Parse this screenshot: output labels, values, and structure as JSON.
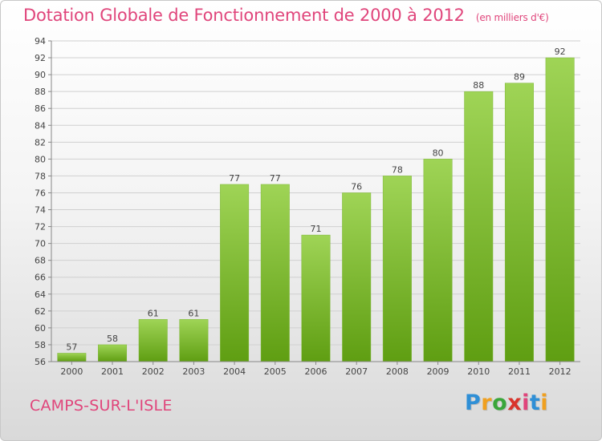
{
  "header": {
    "title": "Dotation Globale de Fonctionnement de 2000 à 2012",
    "unit": "(en milliers d'€)"
  },
  "footer": {
    "commune": "CAMPS-SUR-L'ISLE",
    "logo_text": "Proxiti",
    "logo_letters": [
      "P",
      "r",
      "o",
      "x",
      "i",
      "t",
      "i"
    ],
    "logo_colors": [
      "#2f8fd6",
      "#f0a020",
      "#3aa63a",
      "#d9342b",
      "#e0457b",
      "#2f8fd6",
      "#f0a020"
    ]
  },
  "chart_data": {
    "type": "bar",
    "title": "Dotation Globale de Fonctionnement de 2000 à 2012",
    "subtitle": "(en milliers d'€)",
    "categories": [
      "2000",
      "2001",
      "2002",
      "2003",
      "2004",
      "2005",
      "2006",
      "2007",
      "2008",
      "2009",
      "2010",
      "2011",
      "2012"
    ],
    "values": [
      57,
      58,
      61,
      61,
      77,
      77,
      71,
      76,
      78,
      80,
      88,
      89,
      92
    ],
    "xlabel": "",
    "ylabel": "",
    "ylim": [
      56,
      94
    ],
    "yticks": [
      56,
      58,
      60,
      62,
      64,
      66,
      68,
      70,
      72,
      74,
      76,
      78,
      80,
      82,
      84,
      86,
      88,
      90,
      92,
      94
    ],
    "grid": true,
    "legend": "none",
    "colors": {
      "bar_top": "#9fd456",
      "bar_bottom": "#5f9e12",
      "grid": "#d0d0d0",
      "axis": "#888888",
      "label": "#444444",
      "accent": "#e0457b"
    }
  }
}
